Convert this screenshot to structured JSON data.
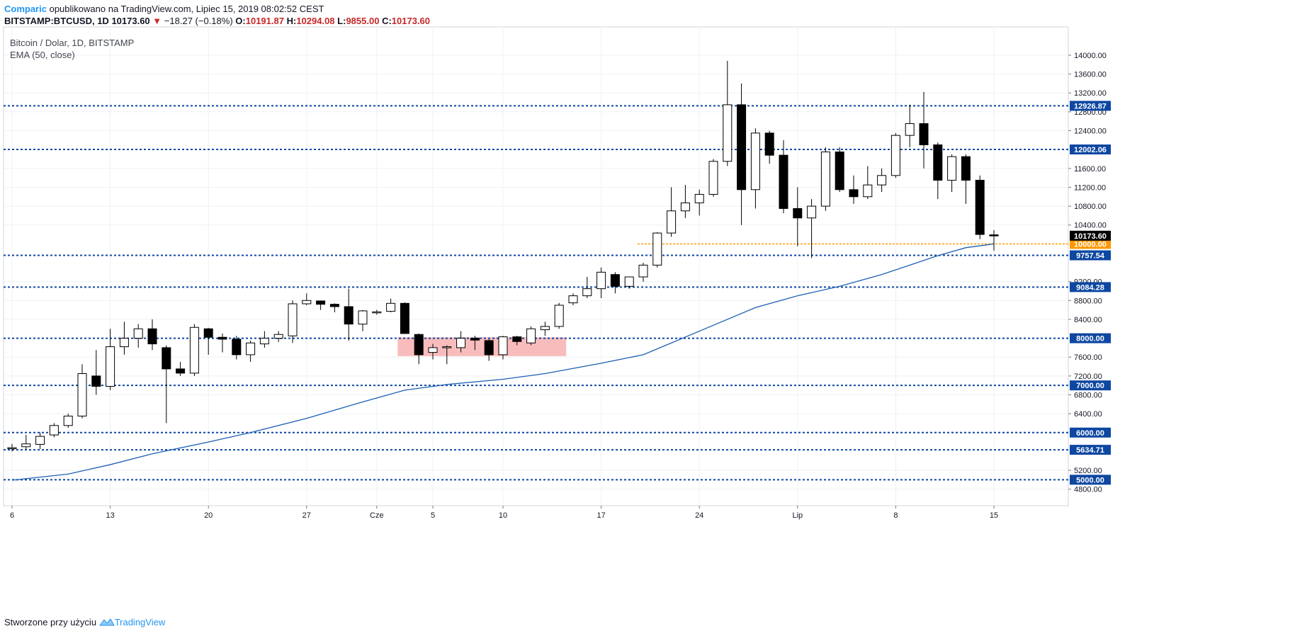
{
  "header": {
    "author": "Comparic",
    "published_text": "opublikowano na TradingView.com, Lipiec 15, 2019 08:02:52 CEST"
  },
  "ohlc": {
    "symbol": "BITSTAMP:BTCUSD, 1D",
    "last": "10173.60",
    "change": "−18.27 (−0.18%)",
    "o_label": "O:",
    "o": "10191.87",
    "h_label": "H:",
    "h": "10294.08",
    "l_label": "L:",
    "l": "9855.00",
    "c_label": "C:",
    "c": "10173.60"
  },
  "legend": {
    "title": "Bitcoin / Dolar, 1D, BITSTAMP",
    "indicator": "EMA (50, close)"
  },
  "footer": {
    "created_with": "Stworzone przy użyciu",
    "brand": "TradingView"
  },
  "colors": {
    "grid": "#eef1f6",
    "candle_up_fill": "#ffffff",
    "candle_down_fill": "#000000",
    "candle_border": "#000000",
    "ema": "#1e5fb4",
    "hline": "#0d47a1",
    "orange_line": "#ff9800",
    "zone": "#f7a6a6",
    "last_price_bg": "#000000"
  },
  "chart_data": {
    "type": "candlestick",
    "x_tick_labels": [
      "6",
      "13",
      "20",
      "27",
      "Cze",
      "5",
      "10",
      "17",
      "24",
      "Lip",
      "8",
      "15"
    ],
    "x_tick_day_index": [
      0,
      7,
      14,
      21,
      26,
      30,
      35,
      42,
      49,
      56,
      63,
      70
    ],
    "y_ticks": [
      4800,
      5200,
      6400,
      6800,
      7200,
      7600,
      8400,
      8800,
      9200,
      10400,
      10800,
      11200,
      11600,
      12400,
      12800,
      13200,
      13600,
      14000
    ],
    "ylim": [
      4450,
      14600
    ],
    "candles": [
      {
        "o": 5680,
        "h": 5760,
        "l": 5600,
        "c": 5680
      },
      {
        "o": 5700,
        "h": 5950,
        "l": 5650,
        "c": 5760
      },
      {
        "o": 5750,
        "h": 6000,
        "l": 5650,
        "c": 5920
      },
      {
        "o": 5950,
        "h": 6200,
        "l": 5900,
        "c": 6150
      },
      {
        "o": 6150,
        "h": 6400,
        "l": 6100,
        "c": 6350
      },
      {
        "o": 6350,
        "h": 7450,
        "l": 6300,
        "c": 7250
      },
      {
        "o": 7200,
        "h": 7750,
        "l": 6800,
        "c": 6980
      },
      {
        "o": 6980,
        "h": 8200,
        "l": 6900,
        "c": 7820
      },
      {
        "o": 7820,
        "h": 8350,
        "l": 7650,
        "c": 8000
      },
      {
        "o": 8000,
        "h": 8300,
        "l": 7800,
        "c": 8200
      },
      {
        "o": 8200,
        "h": 8400,
        "l": 7750,
        "c": 7880
      },
      {
        "o": 7800,
        "h": 7850,
        "l": 6200,
        "c": 7350
      },
      {
        "o": 7350,
        "h": 7500,
        "l": 7200,
        "c": 7260
      },
      {
        "o": 7260,
        "h": 8300,
        "l": 7200,
        "c": 8230
      },
      {
        "o": 8200,
        "h": 8220,
        "l": 7650,
        "c": 8020
      },
      {
        "o": 8020,
        "h": 8100,
        "l": 7700,
        "c": 7980
      },
      {
        "o": 7980,
        "h": 8050,
        "l": 7550,
        "c": 7650
      },
      {
        "o": 7650,
        "h": 7950,
        "l": 7500,
        "c": 7900
      },
      {
        "o": 7880,
        "h": 8150,
        "l": 7800,
        "c": 8000
      },
      {
        "o": 8000,
        "h": 8150,
        "l": 7920,
        "c": 8080
      },
      {
        "o": 8050,
        "h": 8800,
        "l": 7900,
        "c": 8730
      },
      {
        "o": 8730,
        "h": 8950,
        "l": 8700,
        "c": 8800
      },
      {
        "o": 8790,
        "h": 8800,
        "l": 8600,
        "c": 8720
      },
      {
        "o": 8720,
        "h": 8740,
        "l": 8550,
        "c": 8670
      },
      {
        "o": 8670,
        "h": 9050,
        "l": 7950,
        "c": 8300
      },
      {
        "o": 8300,
        "h": 8600,
        "l": 8150,
        "c": 8580
      },
      {
        "o": 8540,
        "h": 8600,
        "l": 8500,
        "c": 8560
      },
      {
        "o": 8570,
        "h": 8840,
        "l": 8550,
        "c": 8740
      },
      {
        "o": 8740,
        "h": 8760,
        "l": 8100,
        "c": 8100
      },
      {
        "o": 8080,
        "h": 8100,
        "l": 7450,
        "c": 7650
      },
      {
        "o": 7700,
        "h": 7880,
        "l": 7550,
        "c": 7800
      },
      {
        "o": 7800,
        "h": 7850,
        "l": 7450,
        "c": 7820
      },
      {
        "o": 7800,
        "h": 8150,
        "l": 7700,
        "c": 8000
      },
      {
        "o": 8000,
        "h": 8050,
        "l": 7750,
        "c": 7960
      },
      {
        "o": 7950,
        "h": 7980,
        "l": 7520,
        "c": 7650
      },
      {
        "o": 7650,
        "h": 8050,
        "l": 7550,
        "c": 8030
      },
      {
        "o": 8030,
        "h": 8050,
        "l": 7850,
        "c": 7930
      },
      {
        "o": 7900,
        "h": 8250,
        "l": 7850,
        "c": 8200
      },
      {
        "o": 8180,
        "h": 8350,
        "l": 8050,
        "c": 8250
      },
      {
        "o": 8250,
        "h": 8750,
        "l": 8200,
        "c": 8700
      },
      {
        "o": 8750,
        "h": 8950,
        "l": 8700,
        "c": 8900
      },
      {
        "o": 8900,
        "h": 9300,
        "l": 8850,
        "c": 9050
      },
      {
        "o": 9050,
        "h": 9500,
        "l": 8850,
        "c": 9400
      },
      {
        "o": 9350,
        "h": 9400,
        "l": 8950,
        "c": 9100
      },
      {
        "o": 9100,
        "h": 9300,
        "l": 9050,
        "c": 9300
      },
      {
        "o": 9300,
        "h": 9600,
        "l": 9200,
        "c": 9550
      },
      {
        "o": 9550,
        "h": 10250,
        "l": 9500,
        "c": 10230
      },
      {
        "o": 10230,
        "h": 11200,
        "l": 10150,
        "c": 10700
      },
      {
        "o": 10700,
        "h": 11250,
        "l": 10550,
        "c": 10870
      },
      {
        "o": 10870,
        "h": 11150,
        "l": 10600,
        "c": 11050
      },
      {
        "o": 11050,
        "h": 11800,
        "l": 11000,
        "c": 11750
      },
      {
        "o": 11750,
        "h": 13880,
        "l": 11650,
        "c": 12950
      },
      {
        "o": 12950,
        "h": 13400,
        "l": 10400,
        "c": 11150
      },
      {
        "o": 11150,
        "h": 12450,
        "l": 10750,
        "c": 12350
      },
      {
        "o": 12350,
        "h": 12400,
        "l": 11700,
        "c": 11880
      },
      {
        "o": 11880,
        "h": 12200,
        "l": 10650,
        "c": 10750
      },
      {
        "o": 10750,
        "h": 11200,
        "l": 9950,
        "c": 10550
      },
      {
        "o": 10550,
        "h": 10950,
        "l": 9700,
        "c": 10800
      },
      {
        "o": 10800,
        "h": 12050,
        "l": 10700,
        "c": 11950
      },
      {
        "o": 11950,
        "h": 12050,
        "l": 11100,
        "c": 11150
      },
      {
        "o": 11150,
        "h": 11450,
        "l": 10850,
        "c": 11000
      },
      {
        "o": 11000,
        "h": 11650,
        "l": 10950,
        "c": 11250
      },
      {
        "o": 11250,
        "h": 11600,
        "l": 11100,
        "c": 11450
      },
      {
        "o": 11450,
        "h": 12350,
        "l": 11400,
        "c": 12300
      },
      {
        "o": 12300,
        "h": 12950,
        "l": 12050,
        "c": 12550
      },
      {
        "o": 12550,
        "h": 13220,
        "l": 11600,
        "c": 12100
      },
      {
        "o": 12100,
        "h": 12150,
        "l": 10950,
        "c": 11350
      },
      {
        "o": 11350,
        "h": 11900,
        "l": 11100,
        "c": 11850
      },
      {
        "o": 11850,
        "h": 11900,
        "l": 10850,
        "c": 11350
      },
      {
        "o": 11350,
        "h": 11450,
        "l": 10100,
        "c": 10200
      },
      {
        "o": 10191.87,
        "h": 10294.08,
        "l": 9855,
        "c": 10173.6
      }
    ],
    "ema_50": [
      [
        0,
        4990
      ],
      [
        4,
        5120
      ],
      [
        7,
        5320
      ],
      [
        10,
        5550
      ],
      [
        14,
        5800
      ],
      [
        17,
        6000
      ],
      [
        21,
        6300
      ],
      [
        25,
        6650
      ],
      [
        28,
        6900
      ],
      [
        31,
        7020
      ],
      [
        35,
        7130
      ],
      [
        38,
        7250
      ],
      [
        42,
        7470
      ],
      [
        45,
        7650
      ],
      [
        47,
        7900
      ],
      [
        49,
        8150
      ],
      [
        51,
        8400
      ],
      [
        53,
        8650
      ],
      [
        56,
        8900
      ],
      [
        59,
        9100
      ],
      [
        62,
        9350
      ],
      [
        64,
        9550
      ],
      [
        66,
        9750
      ],
      [
        68,
        9920
      ],
      [
        70,
        10000
      ]
    ],
    "horizontal_levels": [
      {
        "value": 12926.87,
        "label": "12926.87"
      },
      {
        "value": 12002.06,
        "label": "12002.06"
      },
      {
        "value": 9757.54,
        "label": "9757.54"
      },
      {
        "value": 9084.28,
        "label": "9084.28"
      },
      {
        "value": 8000.0,
        "label": "8000.00"
      },
      {
        "value": 7000.0,
        "label": "7000.00"
      },
      {
        "value": 6000.0,
        "label": "6000.00"
      },
      {
        "value": 5634.71,
        "label": "5634.71"
      },
      {
        "value": 5000.0,
        "label": "5000.00"
      }
    ],
    "orange_level": {
      "value": 10000.0,
      "label": "10000.00",
      "from_day": 45
    },
    "last_price": {
      "value": 10173.6,
      "label": "10173.60"
    },
    "zone": {
      "from_day": 28,
      "to_day": 39,
      "low": 7620,
      "high": 8020
    }
  }
}
